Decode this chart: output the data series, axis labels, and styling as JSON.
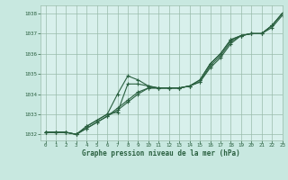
{
  "background_color": "#c8e8e0",
  "plot_bg_color": "#d8f0ec",
  "grid_color": "#99bbaa",
  "line_color": "#2a6040",
  "marker_color": "#2a6040",
  "title": "Graphe pression niveau de la mer (hPa)",
  "xlim": [
    -0.5,
    23
  ],
  "ylim": [
    1031.7,
    1038.4
  ],
  "yticks": [
    1032,
    1033,
    1034,
    1035,
    1036,
    1037,
    1038
  ],
  "xticks": [
    0,
    1,
    2,
    3,
    4,
    5,
    6,
    7,
    8,
    9,
    10,
    11,
    12,
    13,
    14,
    15,
    16,
    17,
    18,
    19,
    20,
    21,
    22,
    23
  ],
  "series": [
    [
      1032.1,
      1032.1,
      1032.1,
      1032.0,
      1032.3,
      1032.6,
      1032.9,
      1033.3,
      1033.7,
      1034.1,
      1034.3,
      1034.3,
      1034.3,
      1034.3,
      1034.4,
      1034.6,
      1035.3,
      1035.8,
      1036.5,
      1036.9,
      1037.0,
      1037.0,
      1037.3,
      1037.9
    ],
    [
      1032.1,
      1032.1,
      1032.1,
      1032.0,
      1032.3,
      1032.6,
      1032.9,
      1033.2,
      1033.6,
      1034.0,
      1034.3,
      1034.3,
      1034.3,
      1034.3,
      1034.4,
      1034.6,
      1035.4,
      1035.9,
      1036.6,
      1036.9,
      1037.0,
      1037.0,
      1037.4,
      1038.0
    ],
    [
      1032.1,
      1032.1,
      1032.1,
      1032.0,
      1032.4,
      1032.7,
      1033.0,
      1033.1,
      1034.5,
      1034.5,
      1034.4,
      1034.3,
      1034.3,
      1034.3,
      1034.4,
      1034.7,
      1035.5,
      1036.0,
      1036.7,
      1036.9,
      1037.0,
      1037.0,
      1037.4,
      1038.0
    ],
    [
      1032.1,
      1032.1,
      1032.1,
      1032.0,
      1032.4,
      1032.7,
      1033.0,
      1034.0,
      1034.9,
      1034.7,
      1034.4,
      1034.3,
      1034.3,
      1034.3,
      1034.4,
      1034.7,
      1035.5,
      1036.0,
      1036.7,
      1036.9,
      1037.0,
      1037.0,
      1037.4,
      1038.0
    ]
  ],
  "show_markers": [
    true,
    true,
    true,
    true
  ],
  "marker_style": "+",
  "marker_size": 3.5,
  "linewidth": 0.8
}
